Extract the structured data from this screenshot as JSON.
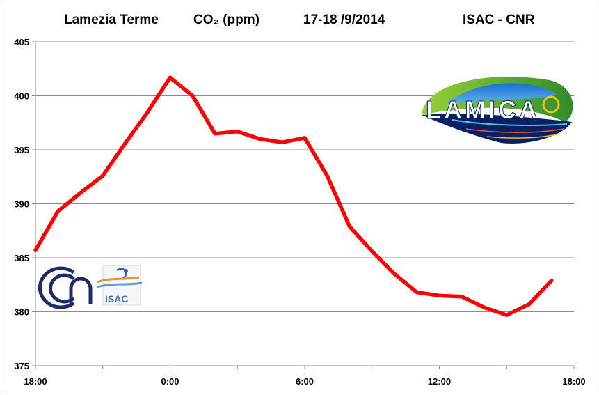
{
  "chart_data": {
    "type": "line",
    "title_parts": [
      "Lamezia Terme",
      "CO₂ (ppm)",
      "17-18 /9/2014",
      "ISAC - CNR"
    ],
    "xlabel": "",
    "ylabel": "",
    "ylim": [
      375,
      405
    ],
    "yticks": [
      375,
      380,
      385,
      390,
      395,
      400,
      405
    ],
    "xlim": [
      0,
      24
    ],
    "xticks": [
      {
        "value": 0,
        "label": "18:00"
      },
      {
        "value": 6,
        "label": "0:00"
      },
      {
        "value": 12,
        "label": "6:00"
      },
      {
        "value": 18,
        "label": "12:00"
      },
      {
        "value": 24,
        "label": "18:00"
      }
    ],
    "grid": "horizontal",
    "legend": "none",
    "series": [
      {
        "color": "#ff0000",
        "x": [
          0,
          1,
          2,
          3,
          4,
          5,
          6,
          7,
          8,
          9,
          10,
          11,
          12,
          13,
          14,
          15,
          16,
          17,
          18,
          19,
          20,
          21,
          22,
          23
        ],
        "y": [
          385.7,
          389.3,
          391.0,
          392.6,
          395.6,
          398.5,
          401.7,
          400.0,
          396.5,
          396.7,
          396.0,
          395.7,
          396.1,
          392.6,
          387.9,
          385.6,
          383.5,
          381.8,
          381.5,
          381.4,
          380.4,
          379.7,
          380.7,
          382.9
        ]
      }
    ]
  },
  "logos": {
    "lamica": {
      "text": "LAMICA",
      "colors": {
        "dark": "#0a2a6e",
        "green": "#4caf2a",
        "sky": "#1e88e5",
        "accent": "#f4c21a"
      }
    },
    "cnr": {
      "icon": "cnr-logo-icon",
      "color": "#1f2a6b"
    },
    "isac": {
      "text": "ISAC",
      "color": "#4a6fb5"
    }
  }
}
